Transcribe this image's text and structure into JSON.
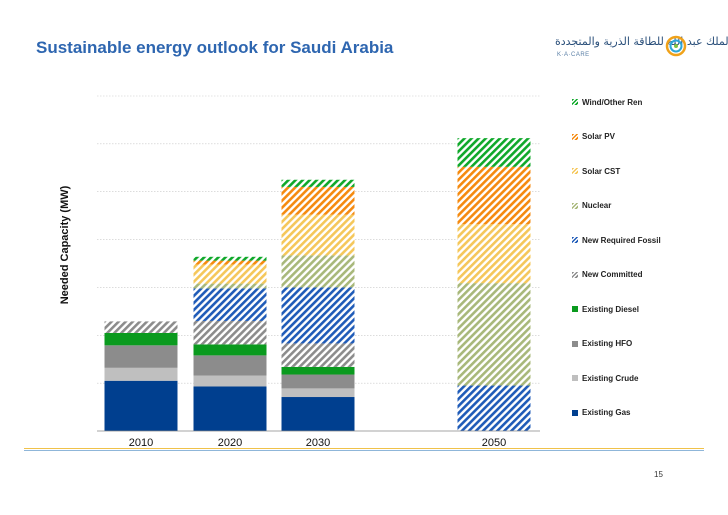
{
  "page": {
    "title": "Sustainable energy outlook for Saudi Arabia",
    "page_number": "15"
  },
  "logo": {
    "arabic_text": "مدينة الملك عبد الله للطاقة الذرية والمتجددة",
    "english_text": "K·A·CARE"
  },
  "chart_data": {
    "type": "bar",
    "stacked": true,
    "title": "",
    "xlabel": "",
    "ylabel": "Needed Capacity (MW)",
    "grid": true,
    "y_ticks_labeled": false,
    "ylim": [
      0,
      7
    ],
    "categories": [
      "2010",
      "2020",
      "2030",
      "2050"
    ],
    "legend_position": "right",
    "series": [
      {
        "name": "Existing Gas",
        "color": "#003f8f",
        "pattern": "solid",
        "values": [
          1.05,
          0.93,
          0.71,
          0.0
        ]
      },
      {
        "name": "Existing Crude",
        "color": "#bfbfbf",
        "pattern": "solid",
        "values": [
          0.27,
          0.23,
          0.18,
          0.0
        ]
      },
      {
        "name": "Existing HFO",
        "color": "#8c8c8c",
        "pattern": "solid",
        "values": [
          0.47,
          0.42,
          0.29,
          0.0
        ]
      },
      {
        "name": "Existing Diesel",
        "color": "#0a9a1e",
        "pattern": "solid",
        "values": [
          0.26,
          0.23,
          0.16,
          0.0
        ]
      },
      {
        "name": "New Committed",
        "color": "#8c8c8c",
        "pattern": "hatch",
        "values": [
          0.24,
          0.49,
          0.49,
          0.0
        ]
      },
      {
        "name": "New Required Fossil",
        "color": "#1f5bb8",
        "pattern": "hatch",
        "values": [
          0.0,
          0.68,
          1.17,
          0.95
        ]
      },
      {
        "name": "Nuclear",
        "color": "#a8b87a",
        "pattern": "hatch",
        "values": [
          0.0,
          0.1,
          0.67,
          2.14
        ]
      },
      {
        "name": "Solar CST",
        "color": "#f5c75a",
        "pattern": "hatch",
        "values": [
          0.0,
          0.4,
          0.85,
          1.23
        ]
      },
      {
        "name": "Solar PV",
        "color": "#f58a0f",
        "pattern": "hatch",
        "values": [
          0.0,
          0.08,
          0.58,
          1.2
        ]
      },
      {
        "name": "Wind/Other Ren",
        "color": "#0fa82a",
        "pattern": "hatch",
        "values": [
          0.0,
          0.08,
          0.15,
          0.6
        ]
      }
    ]
  }
}
